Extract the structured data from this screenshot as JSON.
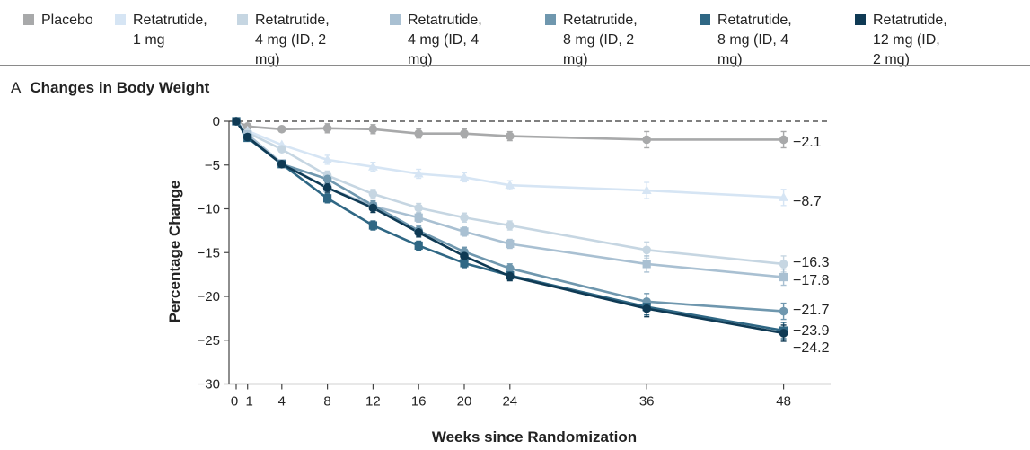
{
  "legend": [
    {
      "name": "Placebo",
      "color": "#a8a9aa",
      "marker": "circle"
    },
    {
      "name": "Retatrutide,\n1 mg",
      "color": "#d6e5f4",
      "marker": "triangle"
    },
    {
      "name": "Retatrutide,\n4 mg (ID, 2 mg)",
      "color": "#c6d6e2",
      "marker": "circle"
    },
    {
      "name": "Retatrutide,\n4 mg (ID, 4 mg)",
      "color": "#a9c0d2",
      "marker": "square"
    },
    {
      "name": "Retatrutide,\n8 mg (ID, 2 mg)",
      "color": "#6f97ae",
      "marker": "circle"
    },
    {
      "name": "Retatrutide,\n8 mg (ID, 4 mg)",
      "color": "#2f6784",
      "marker": "square"
    },
    {
      "name": "Retatrutide,\n12 mg (ID, 2 mg)",
      "color": "#0f3a54",
      "marker": "circle"
    }
  ],
  "panel": {
    "letter": "A",
    "title": "Changes in Body Weight"
  },
  "chart_data": {
    "type": "line",
    "title": "Changes in Body Weight",
    "xlabel": "Weeks since Randomization",
    "ylabel": "Percentage Change",
    "xlim": [
      0,
      52
    ],
    "ylim": [
      -30,
      0
    ],
    "x_ticks": [
      0,
      1,
      4,
      8,
      12,
      16,
      20,
      24,
      36,
      48
    ],
    "x_tick_labels": [
      "0",
      "1",
      "4",
      "8",
      "12",
      "16",
      "20",
      "24",
      "36",
      "48"
    ],
    "y_ticks": [
      0,
      -5,
      -10,
      -15,
      -20,
      -25,
      -30
    ],
    "y_tick_labels": [
      "0",
      "−5",
      "−10",
      "−15",
      "−20",
      "−25",
      "−30"
    ],
    "reference_line": 0,
    "x": [
      0,
      1,
      4,
      8,
      12,
      16,
      20,
      24,
      36,
      48
    ],
    "series": [
      {
        "name": "Placebo",
        "values": [
          0,
          -0.6,
          -0.9,
          -0.8,
          -0.9,
          -1.4,
          -1.4,
          -1.7,
          -2.1,
          -2.1
        ],
        "end_label": "−2.1"
      },
      {
        "name": "Retatrutide, 1 mg",
        "values": [
          0,
          -1.1,
          -2.7,
          -4.4,
          -5.2,
          -6.0,
          -6.4,
          -7.3,
          -7.9,
          -8.7
        ],
        "end_label": "−8.7"
      },
      {
        "name": "Retatrutide, 4 mg (ID, 2 mg)",
        "values": [
          0,
          -1.3,
          -3.2,
          -6.2,
          -8.3,
          -9.9,
          -11.0,
          -11.9,
          -14.7,
          -16.3
        ],
        "end_label": "−16.3"
      },
      {
        "name": "Retatrutide, 4 mg (ID, 4 mg)",
        "values": [
          0,
          -1.5,
          -4.8,
          -7.6,
          -9.7,
          -11.0,
          -12.6,
          -14.0,
          -16.3,
          -17.8
        ],
        "end_label": "−17.8"
      },
      {
        "name": "Retatrutide, 8 mg (ID, 2 mg)",
        "values": [
          0,
          -1.8,
          -4.9,
          -6.6,
          -9.6,
          -12.5,
          -14.9,
          -16.8,
          -20.6,
          -21.7
        ],
        "end_label": "−21.7"
      },
      {
        "name": "Retatrutide, 8 mg (ID, 4 mg)",
        "values": [
          0,
          -1.9,
          -4.9,
          -8.8,
          -11.9,
          -14.2,
          -16.2,
          -17.6,
          -21.2,
          -23.9
        ],
        "end_label": "−23.9"
      },
      {
        "name": "Retatrutide, 12 mg (ID, 2 mg)",
        "values": [
          0,
          -1.8,
          -4.9,
          -7.6,
          -9.9,
          -12.7,
          -15.4,
          -17.7,
          -21.4,
          -24.2
        ],
        "end_label": "−24.2"
      }
    ]
  }
}
